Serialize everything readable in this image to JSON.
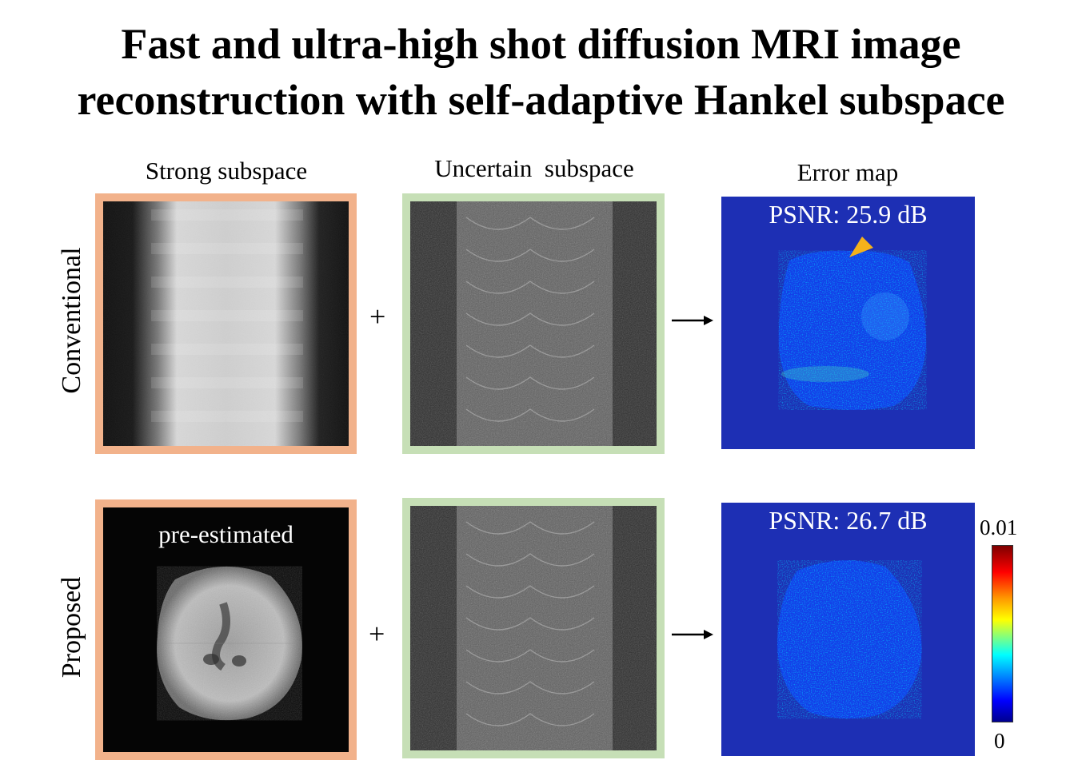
{
  "title": {
    "line1": "Fast and ultra-high shot diffusion MRI image",
    "line2": "reconstruction with self-adaptive Hankel subspace"
  },
  "columns": {
    "strong": "Strong subspace",
    "uncertain": "Uncertain  subspace",
    "error": "Error map"
  },
  "rows": {
    "conventional": "Conventional",
    "proposed": "Proposed"
  },
  "operators": {
    "plus": "+"
  },
  "panels": {
    "pre_estimated": "pre-estimated",
    "psnr_conventional": "PSNR: 25.9 dB",
    "psnr_proposed": "PSNR: 26.7 dB"
  },
  "colorbar": {
    "max": "0.01",
    "min": "0"
  },
  "colors": {
    "strong_frame": "#f2b28b",
    "uncertain_frame": "#c6dfb6",
    "error_background": "#1d2fb4",
    "arrowhead_marker": "#f5b21b"
  }
}
